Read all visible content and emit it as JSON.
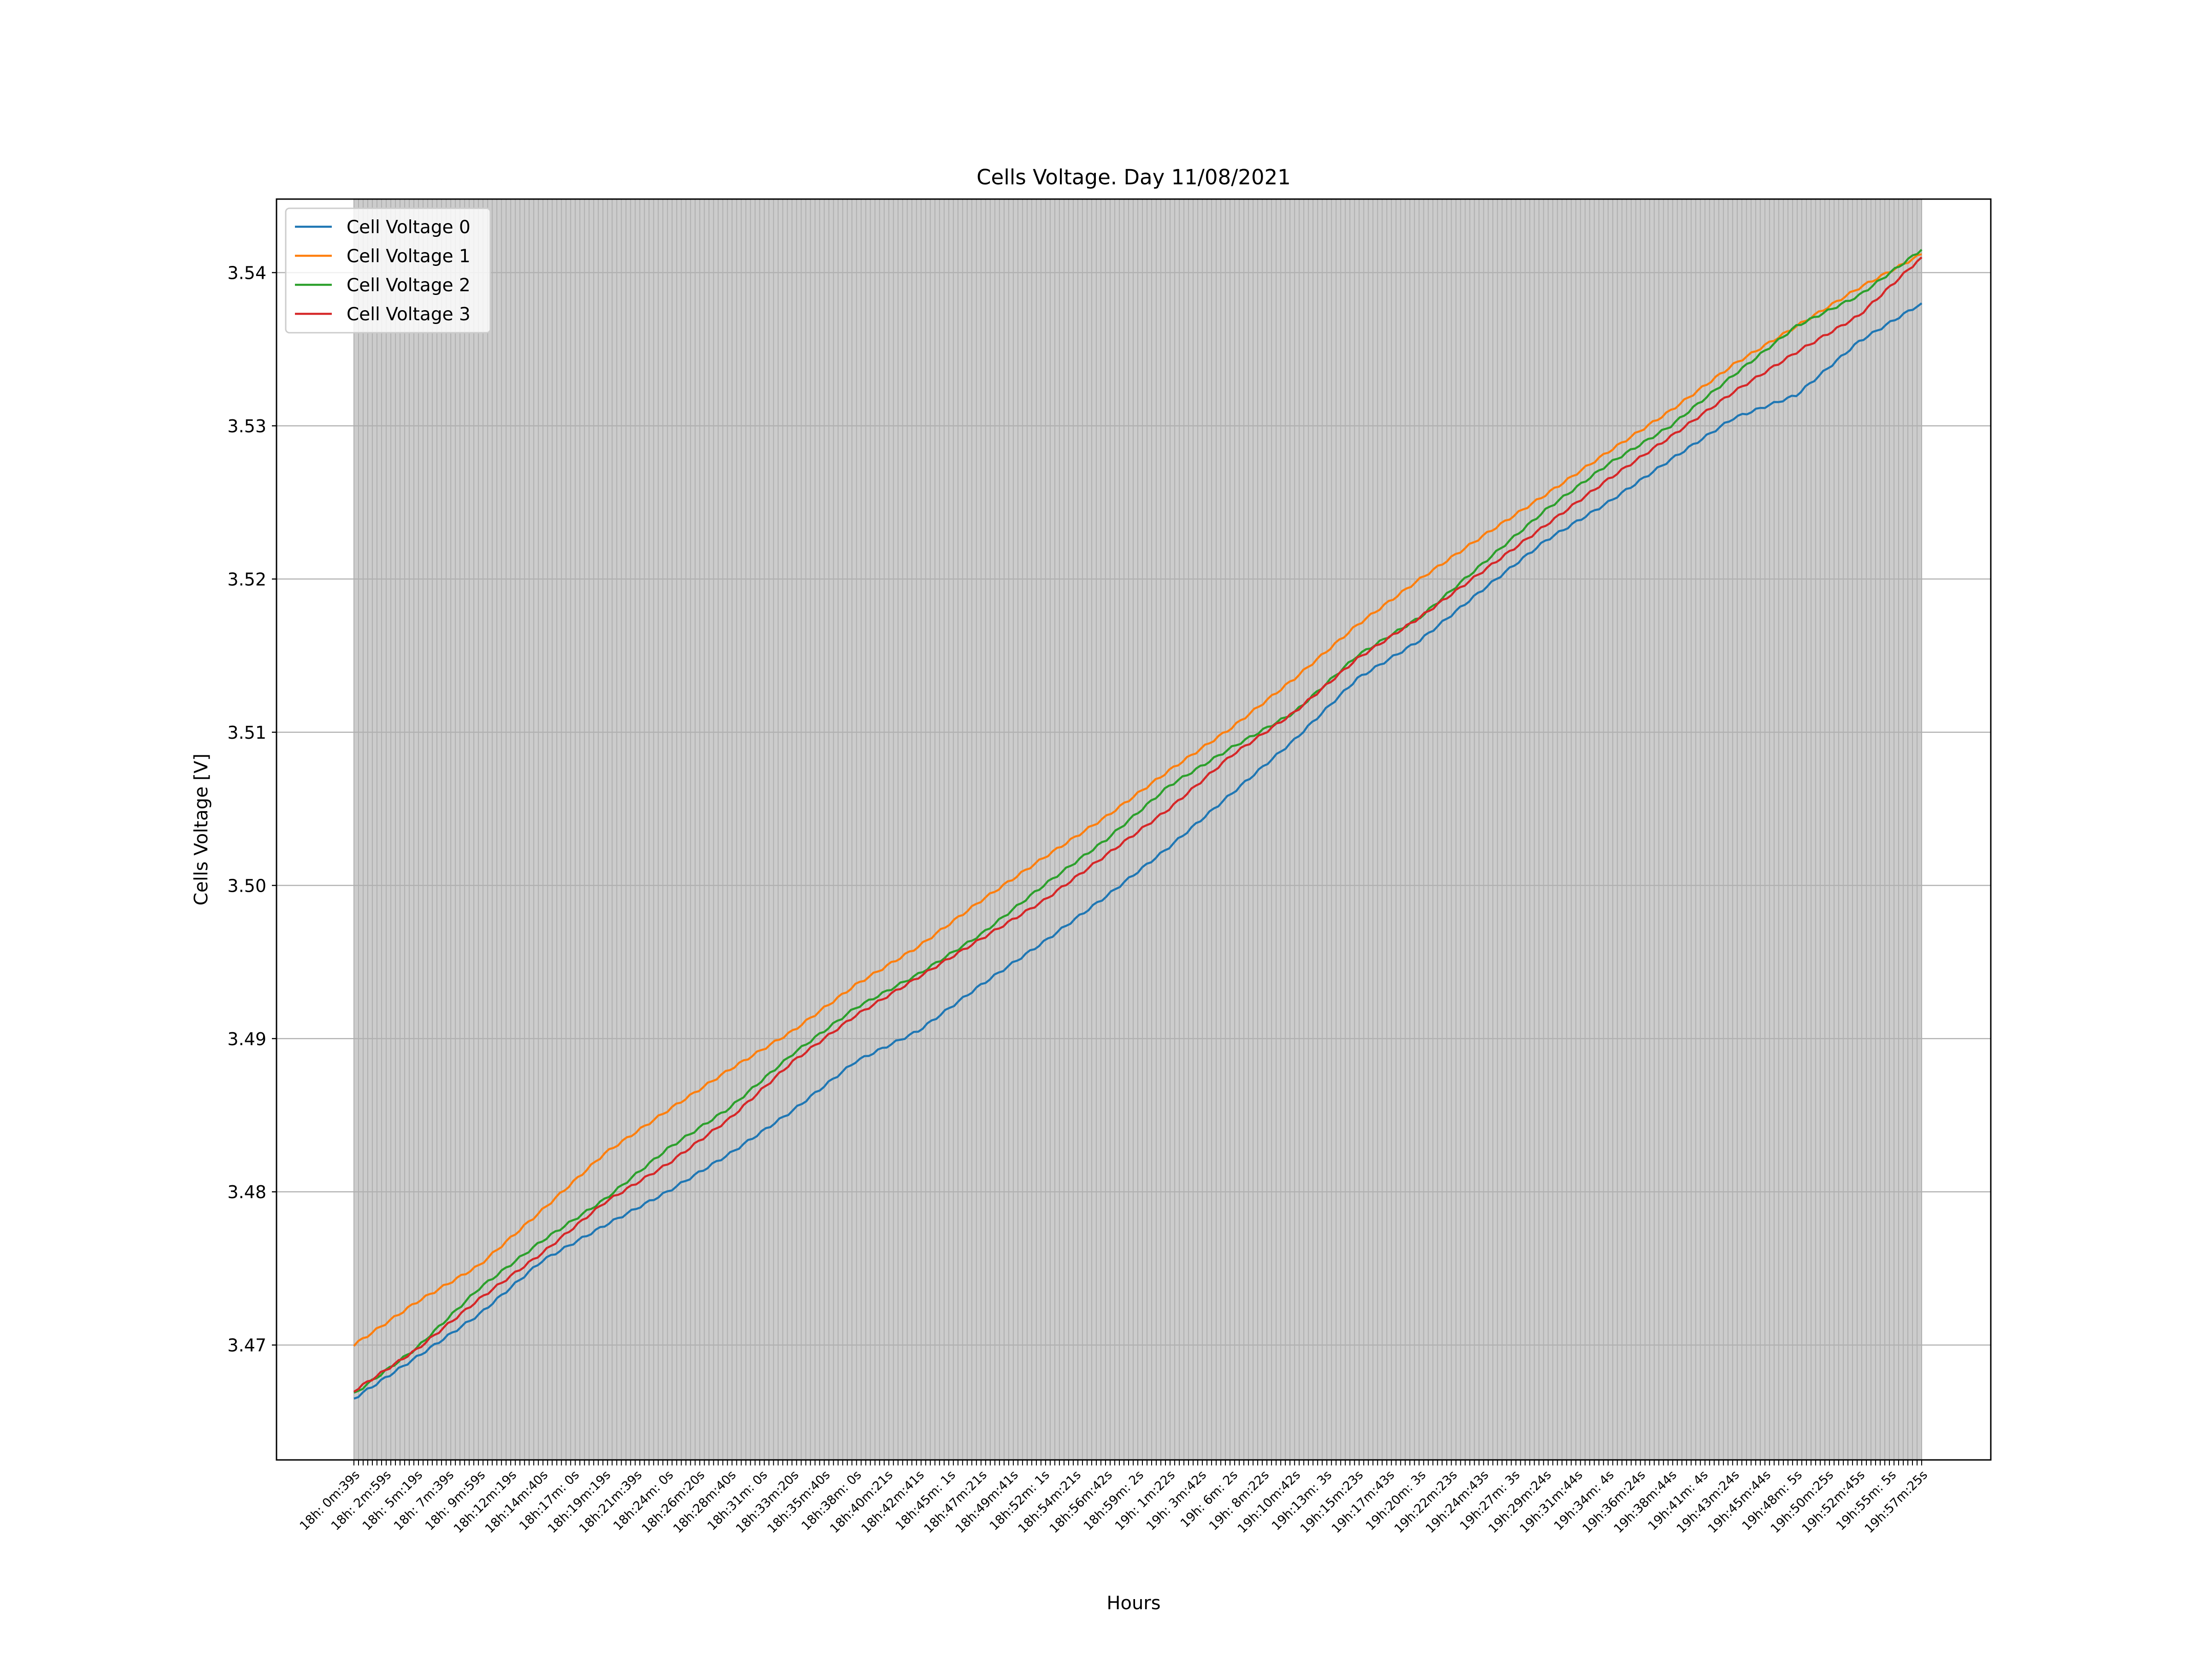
{
  "chart_data": {
    "type": "line",
    "title": "Cells Voltage. Day 11/08/2021",
    "xlabel": "Hours",
    "ylabel": "Cells Voltage [V]",
    "ylim": [
      3.4625,
      3.5448
    ],
    "yticks": [
      3.47,
      3.48,
      3.49,
      3.5,
      3.51,
      3.52,
      3.53,
      3.54
    ],
    "ytick_labels": [
      "3.47",
      "3.48",
      "3.49",
      "3.50",
      "3.51",
      "3.52",
      "3.53",
      "3.54"
    ],
    "xtick_labels": [
      "18h: 0m:39s",
      "18h: 2m:59s",
      "18h: 5m:19s",
      "18h: 7m:39s",
      "18h: 9m:59s",
      "18h:12m:19s",
      "18h:14m:40s",
      "18h:17m: 0s",
      "18h:19m:19s",
      "18h:21m:39s",
      "18h:24m: 0s",
      "18h:26m:20s",
      "18h:28m:40s",
      "18h:31m: 0s",
      "18h:33m:20s",
      "18h:35m:40s",
      "18h:38m: 0s",
      "18h:40m:21s",
      "18h:42m:41s",
      "18h:45m: 1s",
      "18h:47m:21s",
      "18h:49m:41s",
      "18h:52m: 1s",
      "18h:54m:21s",
      "18h:56m:42s",
      "18h:59m: 2s",
      "19h: 1m:22s",
      "19h: 3m:42s",
      "19h: 6m: 2s",
      "19h: 8m:22s",
      "19h:10m:42s",
      "19h:13m: 3s",
      "19h:15m:23s",
      "19h:17m:43s",
      "19h:20m: 3s",
      "19h:22m:23s",
      "19h:24m:43s",
      "19h:27m: 3s",
      "19h:29m:24s",
      "19h:31m:44s",
      "19h:34m: 4s",
      "19h:36m:24s",
      "19h:38m:44s",
      "19h:41m: 4s",
      "19h:43m:24s",
      "19h:45m:44s",
      "19h:48m: 5s",
      "19h:50m:25s",
      "19h:52m:45s",
      "19h:55m: 5s",
      "19h:57m:25s"
    ],
    "x_start": "18h: 0m:39s",
    "x_end": "19h:57m:25s",
    "grid": "y",
    "legend_position": "upper left",
    "plot_background": "#cccccc",
    "series": [
      {
        "name": "Cell Voltage 0",
        "color": "#1f77b4",
        "x": [
          "18h: 0m:39s",
          "18h: 5m:19s",
          "18h: 9m:59s",
          "18h:14m:40s",
          "18h:19m:19s",
          "18h:24m: 0s",
          "18h:28m:40s",
          "18h:33m:20s",
          "18h:38m: 0s",
          "18h:42m:41s",
          "18h:47m:21s",
          "18h:52m: 1s",
          "18h:56m:42s",
          "19h: 1m:22s",
          "19h: 6m: 2s",
          "19h:10m:42s",
          "19h:15m:23s",
          "19h:20m: 3s",
          "19h:24m:43s",
          "19h:29m:24s",
          "19h:34m: 4s",
          "19h:38m:44s",
          "19h:43m:24s",
          "19h:48m: 5s",
          "19h:52m:45s",
          "19h:57m:25s"
        ],
        "values": [
          3.4665,
          3.4692,
          3.472,
          3.4755,
          3.4778,
          3.48,
          3.4825,
          3.4853,
          3.4885,
          3.4905,
          3.4935,
          3.4963,
          3.4993,
          3.5025,
          3.506,
          3.5095,
          3.5135,
          3.516,
          3.5193,
          3.5225,
          3.525,
          3.5278,
          3.5305,
          3.532,
          3.5355,
          3.538
        ]
      },
      {
        "name": "Cell Voltage 1",
        "color": "#ff7f0e",
        "x": [
          "18h: 0m:39s",
          "18h: 5m:19s",
          "18h: 9m:59s",
          "18h:14m:40s",
          "18h:19m:19s",
          "18h:24m: 0s",
          "18h:28m:40s",
          "18h:33m:20s",
          "18h:38m: 0s",
          "18h:42m:41s",
          "18h:47m:21s",
          "18h:52m: 1s",
          "18h:56m:42s",
          "19h: 1m:22s",
          "19h: 6m: 2s",
          "19h:10m:42s",
          "19h:15m:23s",
          "19h:20m: 3s",
          "19h:24m:43s",
          "19h:29m:24s",
          "19h:34m: 4s",
          "19h:38m:44s",
          "19h:43m:24s",
          "19h:48m: 5s",
          "19h:52m:45s",
          "19h:57m:25s"
        ],
        "values": [
          3.47,
          3.4728,
          3.4752,
          3.4788,
          3.4825,
          3.4853,
          3.488,
          3.4905,
          3.4935,
          3.496,
          3.499,
          3.5018,
          3.5045,
          3.5075,
          3.5103,
          3.5135,
          3.517,
          3.52,
          3.5228,
          3.5255,
          3.5283,
          3.531,
          3.534,
          3.5365,
          3.539,
          3.5412
        ]
      },
      {
        "name": "Cell Voltage 2",
        "color": "#2ca02c",
        "x": [
          "18h: 0m:39s",
          "18h: 5m:19s",
          "18h: 9m:59s",
          "18h:14m:40s",
          "18h:19m:19s",
          "18h:24m: 0s",
          "18h:28m:40s",
          "18h:33m:20s",
          "18h:38m: 0s",
          "18h:42m:41s",
          "18h:47m:21s",
          "18h:52m: 1s",
          "18h:56m:42s",
          "19h: 1m:22s",
          "19h: 6m: 2s",
          "19h:10m:42s",
          "19h:15m:23s",
          "19h:20m: 3s",
          "19h:24m:43s",
          "19h:29m:24s",
          "19h:34m: 4s",
          "19h:38m:44s",
          "19h:43m:24s",
          "19h:48m: 5s",
          "19h:52m:45s",
          "19h:57m:25s"
        ],
        "values": [
          3.4668,
          3.4698,
          3.4737,
          3.4768,
          3.4795,
          3.4828,
          3.4855,
          3.489,
          3.492,
          3.4942,
          3.4968,
          3.5,
          3.503,
          3.5065,
          3.509,
          3.5113,
          3.515,
          3.5175,
          3.521,
          3.5245,
          3.5275,
          3.53,
          3.5333,
          3.5365,
          3.5385,
          3.5415
        ]
      },
      {
        "name": "Cell Voltage 3",
        "color": "#d62728",
        "x": [
          "18h: 0m:39s",
          "18h: 5m:19s",
          "18h: 9m:59s",
          "18h:14m:40s",
          "18h:19m:19s",
          "18h:24m: 0s",
          "18h:28m:40s",
          "18h:33m:20s",
          "18h:38m: 0s",
          "18h:42m:41s",
          "18h:47m:21s",
          "18h:52m: 1s",
          "18h:56m:42s",
          "19h: 1m:22s",
          "19h: 6m: 2s",
          "19h:10m:42s",
          "19h:15m:23s",
          "19h:20m: 3s",
          "19h:24m:43s",
          "19h:29m:24s",
          "19h:34m: 4s",
          "19h:38m:44s",
          "19h:43m:24s",
          "19h:48m: 5s",
          "19h:52m:45s",
          "19h:57m:25s"
        ],
        "values": [
          3.467,
          3.4697,
          3.473,
          3.476,
          3.4793,
          3.4818,
          3.4848,
          3.4885,
          3.4915,
          3.494,
          3.4965,
          3.499,
          3.502,
          3.505,
          3.5085,
          3.5113,
          3.5148,
          3.5175,
          3.5205,
          3.5235,
          3.5265,
          3.5293,
          3.5322,
          3.5348,
          3.5372,
          3.541
        ]
      }
    ]
  }
}
